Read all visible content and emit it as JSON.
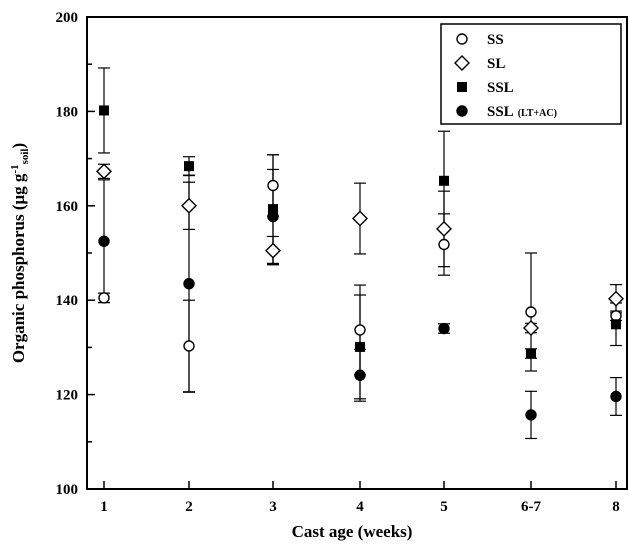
{
  "chart_data": {
    "type": "scatter",
    "title": "",
    "xlabel": "Cast age (weeks)",
    "ylabel": {
      "main": "Organic phosphorus (μg g",
      "sup": "-1",
      "sub": "soil",
      "close": ")"
    },
    "categories": [
      "1",
      "2",
      "3",
      "4",
      "5",
      "6-7",
      "8"
    ],
    "ylim": [
      100,
      200
    ],
    "yticks": [
      100,
      120,
      140,
      160,
      180,
      200
    ],
    "grid": false,
    "legend_position": "top-right",
    "series": [
      {
        "name": "SS",
        "marker": "circle-open",
        "values": [
          140.5,
          130.3,
          164.3,
          133.7,
          151.8,
          137.5,
          136.7
        ],
        "errors": [
          1.0,
          9.7,
          6.5,
          9.5,
          6.5,
          12.5,
          1.0
        ]
      },
      {
        "name": "SL",
        "marker": "diamond-open",
        "values": [
          167.3,
          160.0,
          150.5,
          157.3,
          155.1,
          134.1,
          140.3
        ],
        "errors": [
          1.5,
          5.0,
          3.0,
          7.5,
          8.0,
          1.0,
          3.0
        ]
      },
      {
        "name": "SSL",
        "marker": "square-filled",
        "values": [
          180.2,
          168.4,
          159.3,
          130.1,
          165.3,
          128.7,
          134.9
        ],
        "errors": [
          9.0,
          2.0,
          11.5,
          11.0,
          10.5,
          1.0,
          4.5
        ]
      },
      {
        "name": "SSL",
        "name_sub": "(LT+AC)",
        "marker": "circle-filled",
        "values": [
          152.5,
          143.5,
          157.7,
          124.1,
          134.0,
          115.7,
          119.6
        ],
        "errors": [
          13.0,
          23.0,
          10.0,
          5.5,
          1.0,
          5.0,
          4.0
        ]
      }
    ]
  }
}
